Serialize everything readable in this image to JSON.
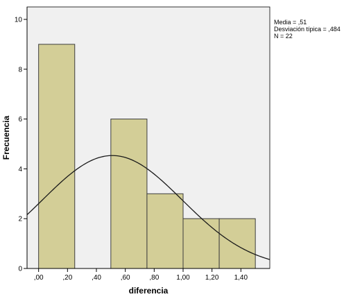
{
  "chart_data": {
    "type": "bar",
    "subtype": "histogram",
    "xlabel": "diferencia",
    "ylabel": "Frecuencia",
    "bins": [
      {
        "start": 0.0,
        "end": 0.25,
        "count": 9
      },
      {
        "start": 0.25,
        "end": 0.5,
        "count": 0
      },
      {
        "start": 0.5,
        "end": 0.75,
        "count": 6
      },
      {
        "start": 0.75,
        "end": 1.0,
        "count": 3
      },
      {
        "start": 1.0,
        "end": 1.25,
        "count": 2
      },
      {
        "start": 1.25,
        "end": 1.5,
        "count": 2
      }
    ],
    "x_ticks": [
      {
        "value": 0.0,
        "label": ",00"
      },
      {
        "value": 0.2,
        "label": ",20"
      },
      {
        "value": 0.4,
        "label": ",40"
      },
      {
        "value": 0.6,
        "label": ",60"
      },
      {
        "value": 0.8,
        "label": ",80"
      },
      {
        "value": 1.0,
        "label": "1,00"
      },
      {
        "value": 1.2,
        "label": "1,20"
      },
      {
        "value": 1.4,
        "label": "1,40"
      }
    ],
    "y_ticks": [
      {
        "value": 0,
        "label": "0"
      },
      {
        "value": 2,
        "label": "2"
      },
      {
        "value": 4,
        "label": "4"
      },
      {
        "value": 6,
        "label": "6"
      },
      {
        "value": 8,
        "label": "8"
      },
      {
        "value": 10,
        "label": "10"
      }
    ],
    "xlim": [
      -0.08,
      1.6
    ],
    "ylim": [
      0,
      10.5
    ],
    "normal_curve": {
      "mean": 0.51,
      "sd": 0.484,
      "n": 22,
      "bin_width": 0.25
    },
    "stats_legend": [
      "Media = ,51",
      "Desviación típica = ,484",
      "N = 22"
    ],
    "legend_position": "top-right",
    "grid": false,
    "colors": {
      "plot_background": "#f0f0f0",
      "bar_fill": "#d3ce97",
      "bar_stroke": "#3c3c3c",
      "curve": "#1a1a1a"
    }
  }
}
